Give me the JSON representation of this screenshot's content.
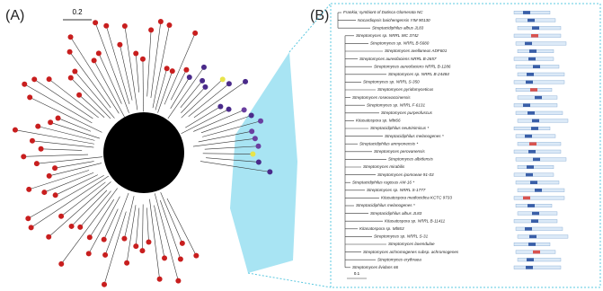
{
  "panel_a": {
    "label": "(A)",
    "scale": "0.2"
  },
  "panel_b": {
    "label": "(B)",
    "scale": "0.1",
    "taxa": [
      "Frankia; symbiont of Datisca Glomerata NC",
      "Nocardiopsis baichengensis YIM 90130",
      "Streptacidiphilus albus JL83",
      "Streptomyces sp. NRRL WC 3742",
      "Streptomyces sp. NRRL B-5680",
      "Streptomyces avellaneus ADF601",
      "Streptomyces aureofaciens NRRL B-2657",
      "Streptomyces aureofaciens NRRL B-1286",
      "Streptomyces sp. NRRL B-24484",
      "Streptomyces sp. NRRL S-350",
      "Streptomyces pyridomyceticus",
      "Streptomyces roseovaccinensis",
      "Streptomyces sp. NRRL F-6131",
      "Streptomyces purpeofuscus",
      "Kitasatospora sp. Mbt66",
      "Streptacidiphilus neutrinimicus *",
      "Streptacidiphilus melanogenes *",
      "Streptacidiphilus anmyonensis *",
      "Streptomyces perovanensis",
      "Streptomyces albidensis",
      "Streptomyces mirabilis",
      "Streptomyces ipomoeae 91-03",
      "Streptacidiphilus rugosus AM-16 *",
      "Streptomyces sp. NRRL S-1777",
      "Kitasatospora mediocidica KCTC 9733",
      "Streptacidiphilus melanogenes *",
      "Streptacidiphilus albus JL83",
      "Kitasatospora sp. NRRL B-11411",
      "Kitasatospora sp. Mbt63",
      "Streptomyces sp. NRRL S-31",
      "Streptomyces lavendulae",
      "Streptomyces achromogenes subsp. achromogenes",
      "Streptomyces erythraea",
      "Streptomyces lividans 66"
    ]
  }
}
